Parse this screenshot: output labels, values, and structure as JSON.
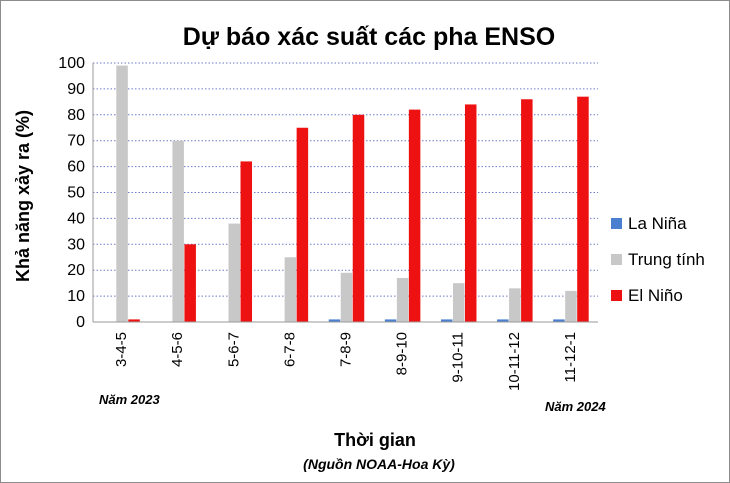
{
  "chart_data": {
    "type": "bar",
    "title": "Dự báo xác suất các pha ENSO",
    "xlabel": "Thời gian",
    "ylabel": "Khả năng xảy ra (%)",
    "source_note": "(Nguồn NOAA-Hoa Kỳ)",
    "year_start_label": "Năm 2023",
    "year_end_label": "Năm 2024",
    "categories": [
      "3-4-5",
      "4-5-6",
      "5-6-7",
      "6-7-8",
      "7-8-9",
      "8-9-10",
      "9-10-11",
      "10-11-12",
      "11-12-1"
    ],
    "ylim": [
      0,
      100
    ],
    "yticks": [
      0,
      10,
      20,
      30,
      40,
      50,
      60,
      70,
      80,
      90,
      100
    ],
    "grid": true,
    "legend_position": "right",
    "series": [
      {
        "name": "La Niña",
        "color": "#4a7fd0",
        "values": [
          0,
          0,
          0,
          0,
          1,
          1,
          1,
          1,
          1
        ]
      },
      {
        "name": "Trung tính",
        "color": "#c8c8c8",
        "values": [
          99,
          70,
          38,
          25,
          19,
          17,
          15,
          13,
          12
        ]
      },
      {
        "name": "El Niño",
        "color": "#ee1111",
        "values": [
          1,
          30,
          62,
          75,
          80,
          82,
          84,
          86,
          87
        ]
      }
    ]
  }
}
